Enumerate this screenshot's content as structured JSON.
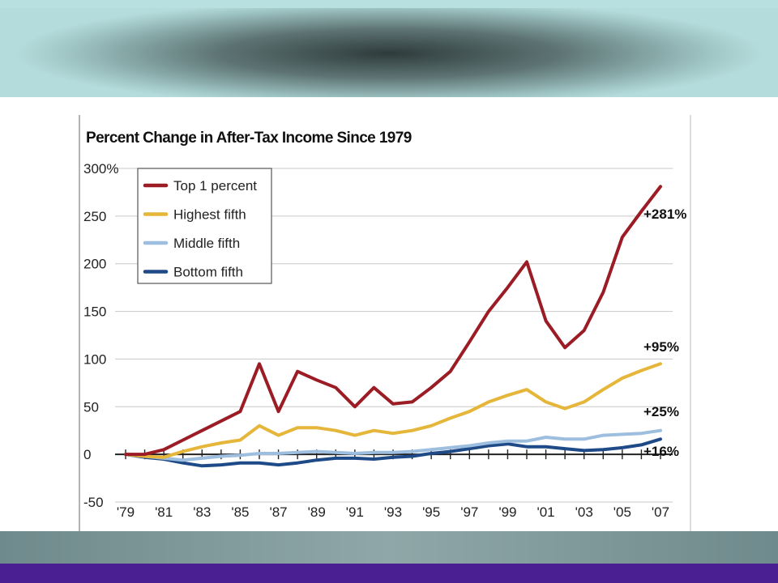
{
  "colors": {
    "top1": "#9b1c24",
    "highest": "#e5b63a",
    "middle": "#9dbedf",
    "bottom": "#1e4b87",
    "grid": "#c9c9c9",
    "axis": "#222222",
    "purple": "#4a1f92"
  },
  "chart_data": {
    "type": "line",
    "title": "Percent Change in After-Tax Income Since 1979",
    "y_unit_suffix": "%",
    "ylim": [
      -50,
      300
    ],
    "yticks": [
      300,
      250,
      200,
      150,
      100,
      50,
      0,
      -50
    ],
    "ytick_labels": [
      "300",
      "250",
      "200",
      "150",
      "100",
      "50",
      "0",
      "-50"
    ],
    "xlim": [
      1979,
      2007
    ],
    "xtick_years": [
      1979,
      1981,
      1983,
      1985,
      1987,
      1989,
      1991,
      1993,
      1995,
      1997,
      1999,
      2001,
      2003,
      2005,
      2007
    ],
    "xtick_labels": [
      "'79",
      "'81",
      "'83",
      "'85",
      "'87",
      "'89",
      "'91",
      "'93",
      "'95",
      "'97",
      "'99",
      "'01",
      "'03",
      "'05",
      "'07"
    ],
    "grid": true,
    "legend_position": "top-left",
    "x": [
      1979,
      1980,
      1981,
      1982,
      1983,
      1984,
      1985,
      1986,
      1987,
      1988,
      1989,
      1990,
      1991,
      1992,
      1993,
      1994,
      1995,
      1996,
      1997,
      1998,
      1999,
      2000,
      2001,
      2002,
      2003,
      2004,
      2005,
      2006,
      2007
    ],
    "series": [
      {
        "name": "Top 1 percent",
        "color_key": "top1",
        "end_label": "+281%",
        "values": [
          0,
          0,
          5,
          15,
          25,
          35,
          45,
          95,
          45,
          87,
          78,
          70,
          50,
          70,
          53,
          55,
          70,
          87,
          118,
          150,
          175,
          202,
          140,
          112,
          130,
          170,
          228,
          255,
          281
        ]
      },
      {
        "name": "Highest fifth",
        "color_key": "highest",
        "end_label": "+95%",
        "values": [
          0,
          -2,
          -3,
          3,
          8,
          12,
          15,
          30,
          20,
          28,
          28,
          25,
          20,
          25,
          22,
          25,
          30,
          38,
          45,
          55,
          62,
          68,
          55,
          48,
          55,
          68,
          80,
          88,
          95
        ]
      },
      {
        "name": "Middle fifth",
        "color_key": "middle",
        "end_label": "+25%",
        "values": [
          0,
          -2,
          -4,
          -6,
          -4,
          -2,
          -1,
          1,
          1,
          2,
          3,
          2,
          1,
          2,
          2,
          3,
          5,
          7,
          9,
          12,
          14,
          14,
          18,
          16,
          16,
          20,
          21,
          22,
          25
        ]
      },
      {
        "name": "Bottom fifth",
        "color_key": "bottom",
        "end_label": "+16%",
        "values": [
          0,
          -3,
          -5,
          -9,
          -12,
          -11,
          -9,
          -9,
          -11,
          -9,
          -6,
          -4,
          -4,
          -5,
          -3,
          -2,
          1,
          3,
          6,
          9,
          11,
          8,
          8,
          6,
          4,
          5,
          7,
          10,
          16
        ]
      }
    ]
  }
}
